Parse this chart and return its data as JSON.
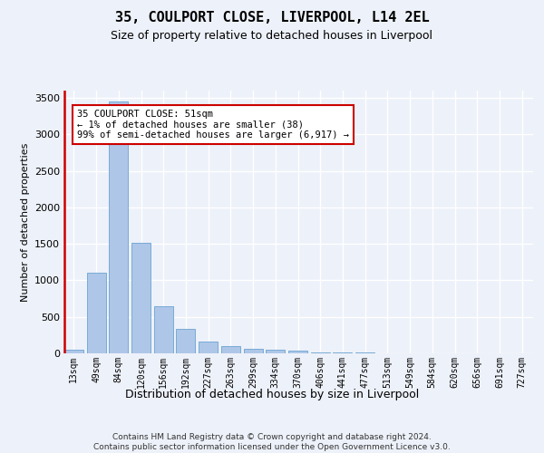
{
  "title": "35, COULPORT CLOSE, LIVERPOOL, L14 2EL",
  "subtitle": "Size of property relative to detached houses in Liverpool",
  "xlabel": "Distribution of detached houses by size in Liverpool",
  "ylabel": "Number of detached properties",
  "footer_line1": "Contains HM Land Registry data © Crown copyright and database right 2024.",
  "footer_line2": "Contains public sector information licensed under the Open Government Licence v3.0.",
  "annotation_title": "35 COULPORT CLOSE: 51sqm",
  "annotation_line1": "← 1% of detached houses are smaller (38)",
  "annotation_line2": "99% of semi-detached houses are larger (6,917) →",
  "bar_color": "#aec6e8",
  "bar_edge_color": "#6aa3d1",
  "subject_line_color": "#cc0000",
  "background_color": "#edf1f9",
  "grid_color": "#ffffff",
  "categories": [
    "13sqm",
    "49sqm",
    "84sqm",
    "120sqm",
    "156sqm",
    "192sqm",
    "227sqm",
    "263sqm",
    "299sqm",
    "334sqm",
    "370sqm",
    "406sqm",
    "441sqm",
    "477sqm",
    "513sqm",
    "549sqm",
    "584sqm",
    "620sqm",
    "656sqm",
    "691sqm",
    "727sqm"
  ],
  "values": [
    50,
    1100,
    3450,
    1510,
    650,
    330,
    165,
    100,
    65,
    55,
    40,
    12,
    12,
    18,
    5,
    4,
    3,
    2,
    1,
    0,
    0
  ],
  "subject_bin_index": 0,
  "ylim": [
    0,
    3600
  ],
  "yticks": [
    0,
    500,
    1000,
    1500,
    2000,
    2500,
    3000,
    3500
  ],
  "title_fontsize": 11,
  "subtitle_fontsize": 9,
  "ylabel_fontsize": 8,
  "xlabel_fontsize": 9,
  "tick_fontsize": 7,
  "footer_fontsize": 6.5,
  "annotation_fontsize": 7.5
}
